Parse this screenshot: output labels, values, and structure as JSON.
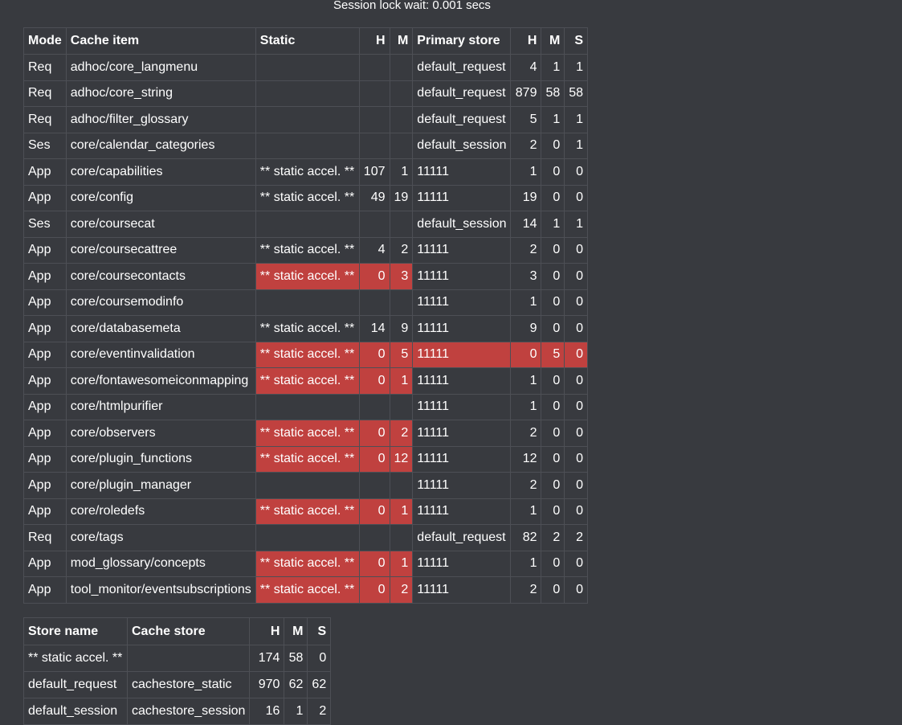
{
  "session_lock": "Session lock wait: 0.001 secs",
  "colors": {
    "background": "#383a3f",
    "highlight": "#c0413f",
    "border": "#4d4f55"
  },
  "cache_table": {
    "headers": [
      "Mode",
      "Cache item",
      "Static",
      "H",
      "M",
      "Primary store",
      "H",
      "M",
      "S"
    ],
    "rows": [
      {
        "mode": "Req",
        "item": "adhoc/core_langmenu",
        "static": "",
        "sh": "",
        "sm": "",
        "primary": "default_request",
        "h": "4",
        "m": "1",
        "s": "1",
        "static_hl": false,
        "primary_hl": false
      },
      {
        "mode": "Req",
        "item": "adhoc/core_string",
        "static": "",
        "sh": "",
        "sm": "",
        "primary": "default_request",
        "h": "879",
        "m": "58",
        "s": "58",
        "static_hl": false,
        "primary_hl": false
      },
      {
        "mode": "Req",
        "item": "adhoc/filter_glossary",
        "static": "",
        "sh": "",
        "sm": "",
        "primary": "default_request",
        "h": "5",
        "m": "1",
        "s": "1",
        "static_hl": false,
        "primary_hl": false
      },
      {
        "mode": "Ses",
        "item": "core/calendar_categories",
        "static": "",
        "sh": "",
        "sm": "",
        "primary": "default_session",
        "h": "2",
        "m": "0",
        "s": "1",
        "static_hl": false,
        "primary_hl": false
      },
      {
        "mode": "App",
        "item": "core/capabilities",
        "static": "** static accel. **",
        "sh": "107",
        "sm": "1",
        "primary": "11111",
        "h": "1",
        "m": "0",
        "s": "0",
        "static_hl": false,
        "primary_hl": false
      },
      {
        "mode": "App",
        "item": "core/config",
        "static": "** static accel. **",
        "sh": "49",
        "sm": "19",
        "primary": "11111",
        "h": "19",
        "m": "0",
        "s": "0",
        "static_hl": false,
        "primary_hl": false
      },
      {
        "mode": "Ses",
        "item": "core/coursecat",
        "static": "",
        "sh": "",
        "sm": "",
        "primary": "default_session",
        "h": "14",
        "m": "1",
        "s": "1",
        "static_hl": false,
        "primary_hl": false
      },
      {
        "mode": "App",
        "item": "core/coursecattree",
        "static": "** static accel. **",
        "sh": "4",
        "sm": "2",
        "primary": "11111",
        "h": "2",
        "m": "0",
        "s": "0",
        "static_hl": false,
        "primary_hl": false
      },
      {
        "mode": "App",
        "item": "core/coursecontacts",
        "static": "** static accel. **",
        "sh": "0",
        "sm": "3",
        "primary": "11111",
        "h": "3",
        "m": "0",
        "s": "0",
        "static_hl": true,
        "primary_hl": false
      },
      {
        "mode": "App",
        "item": "core/coursemodinfo",
        "static": "",
        "sh": "",
        "sm": "",
        "primary": "11111",
        "h": "1",
        "m": "0",
        "s": "0",
        "static_hl": false,
        "primary_hl": false
      },
      {
        "mode": "App",
        "item": "core/databasemeta",
        "static": "** static accel. **",
        "sh": "14",
        "sm": "9",
        "primary": "11111",
        "h": "9",
        "m": "0",
        "s": "0",
        "static_hl": false,
        "primary_hl": false
      },
      {
        "mode": "App",
        "item": "core/eventinvalidation",
        "static": "** static accel. **",
        "sh": "0",
        "sm": "5",
        "primary": "11111",
        "h": "0",
        "m": "5",
        "s": "0",
        "static_hl": true,
        "primary_hl": true
      },
      {
        "mode": "App",
        "item": "core/fontawesomeiconmapping",
        "static": "** static accel. **",
        "sh": "0",
        "sm": "1",
        "primary": "11111",
        "h": "1",
        "m": "0",
        "s": "0",
        "static_hl": true,
        "primary_hl": false
      },
      {
        "mode": "App",
        "item": "core/htmlpurifier",
        "static": "",
        "sh": "",
        "sm": "",
        "primary": "11111",
        "h": "1",
        "m": "0",
        "s": "0",
        "static_hl": false,
        "primary_hl": false
      },
      {
        "mode": "App",
        "item": "core/observers",
        "static": "** static accel. **",
        "sh": "0",
        "sm": "2",
        "primary": "11111",
        "h": "2",
        "m": "0",
        "s": "0",
        "static_hl": true,
        "primary_hl": false
      },
      {
        "mode": "App",
        "item": "core/plugin_functions",
        "static": "** static accel. **",
        "sh": "0",
        "sm": "12",
        "primary": "11111",
        "h": "12",
        "m": "0",
        "s": "0",
        "static_hl": true,
        "primary_hl": false
      },
      {
        "mode": "App",
        "item": "core/plugin_manager",
        "static": "",
        "sh": "",
        "sm": "",
        "primary": "11111",
        "h": "2",
        "m": "0",
        "s": "0",
        "static_hl": false,
        "primary_hl": false
      },
      {
        "mode": "App",
        "item": "core/roledefs",
        "static": "** static accel. **",
        "sh": "0",
        "sm": "1",
        "primary": "11111",
        "h": "1",
        "m": "0",
        "s": "0",
        "static_hl": true,
        "primary_hl": false
      },
      {
        "mode": "Req",
        "item": "core/tags",
        "static": "",
        "sh": "",
        "sm": "",
        "primary": "default_request",
        "h": "82",
        "m": "2",
        "s": "2",
        "static_hl": false,
        "primary_hl": false
      },
      {
        "mode": "App",
        "item": "mod_glossary/concepts",
        "static": "** static accel. **",
        "sh": "0",
        "sm": "1",
        "primary": "11111",
        "h": "1",
        "m": "0",
        "s": "0",
        "static_hl": true,
        "primary_hl": false
      },
      {
        "mode": "App",
        "item": "tool_monitor/eventsubscriptions",
        "static": "** static accel. **",
        "sh": "0",
        "sm": "2",
        "primary": "11111",
        "h": "2",
        "m": "0",
        "s": "0",
        "static_hl": true,
        "primary_hl": false
      }
    ]
  },
  "store_table": {
    "headers": [
      "Store name",
      "Cache store",
      "H",
      "M",
      "S"
    ],
    "rows": [
      {
        "name": "** static accel. **",
        "store": "",
        "h": "174",
        "m": "58",
        "s": "0"
      },
      {
        "name": "default_request",
        "store": "cachestore_static",
        "h": "970",
        "m": "62",
        "s": "62"
      },
      {
        "name": "default_session",
        "store": "cachestore_session",
        "h": "16",
        "m": "1",
        "s": "2"
      }
    ]
  }
}
